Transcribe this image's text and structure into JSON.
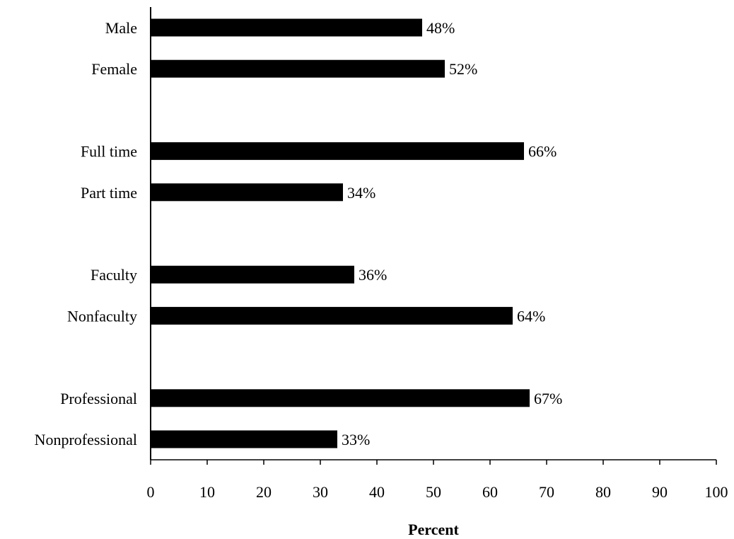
{
  "chart_data": {
    "type": "bar",
    "orientation": "horizontal",
    "title": "",
    "xlabel": "Percent",
    "ylabel": "",
    "xlim": [
      0,
      100
    ],
    "x_ticks": [
      0,
      10,
      20,
      30,
      40,
      50,
      60,
      70,
      80,
      90,
      100
    ],
    "grid": false,
    "legend": "none",
    "bar_color": "#000000",
    "groups": [
      [
        "Male",
        "Female"
      ],
      [
        "Full time",
        "Part time"
      ],
      [
        "Faculty",
        "Nonfaculty"
      ],
      [
        "Professional",
        "Nonprofessional"
      ]
    ],
    "categories": [
      "Male",
      "Female",
      "Full time",
      "Part time",
      "Faculty",
      "Nonfaculty",
      "Professional",
      "Nonprofessional"
    ],
    "values": [
      48,
      52,
      66,
      34,
      36,
      64,
      67,
      33
    ],
    "data_labels": [
      "48%",
      "52%",
      "66%",
      "34%",
      "36%",
      "64%",
      "67%",
      "33%"
    ]
  }
}
